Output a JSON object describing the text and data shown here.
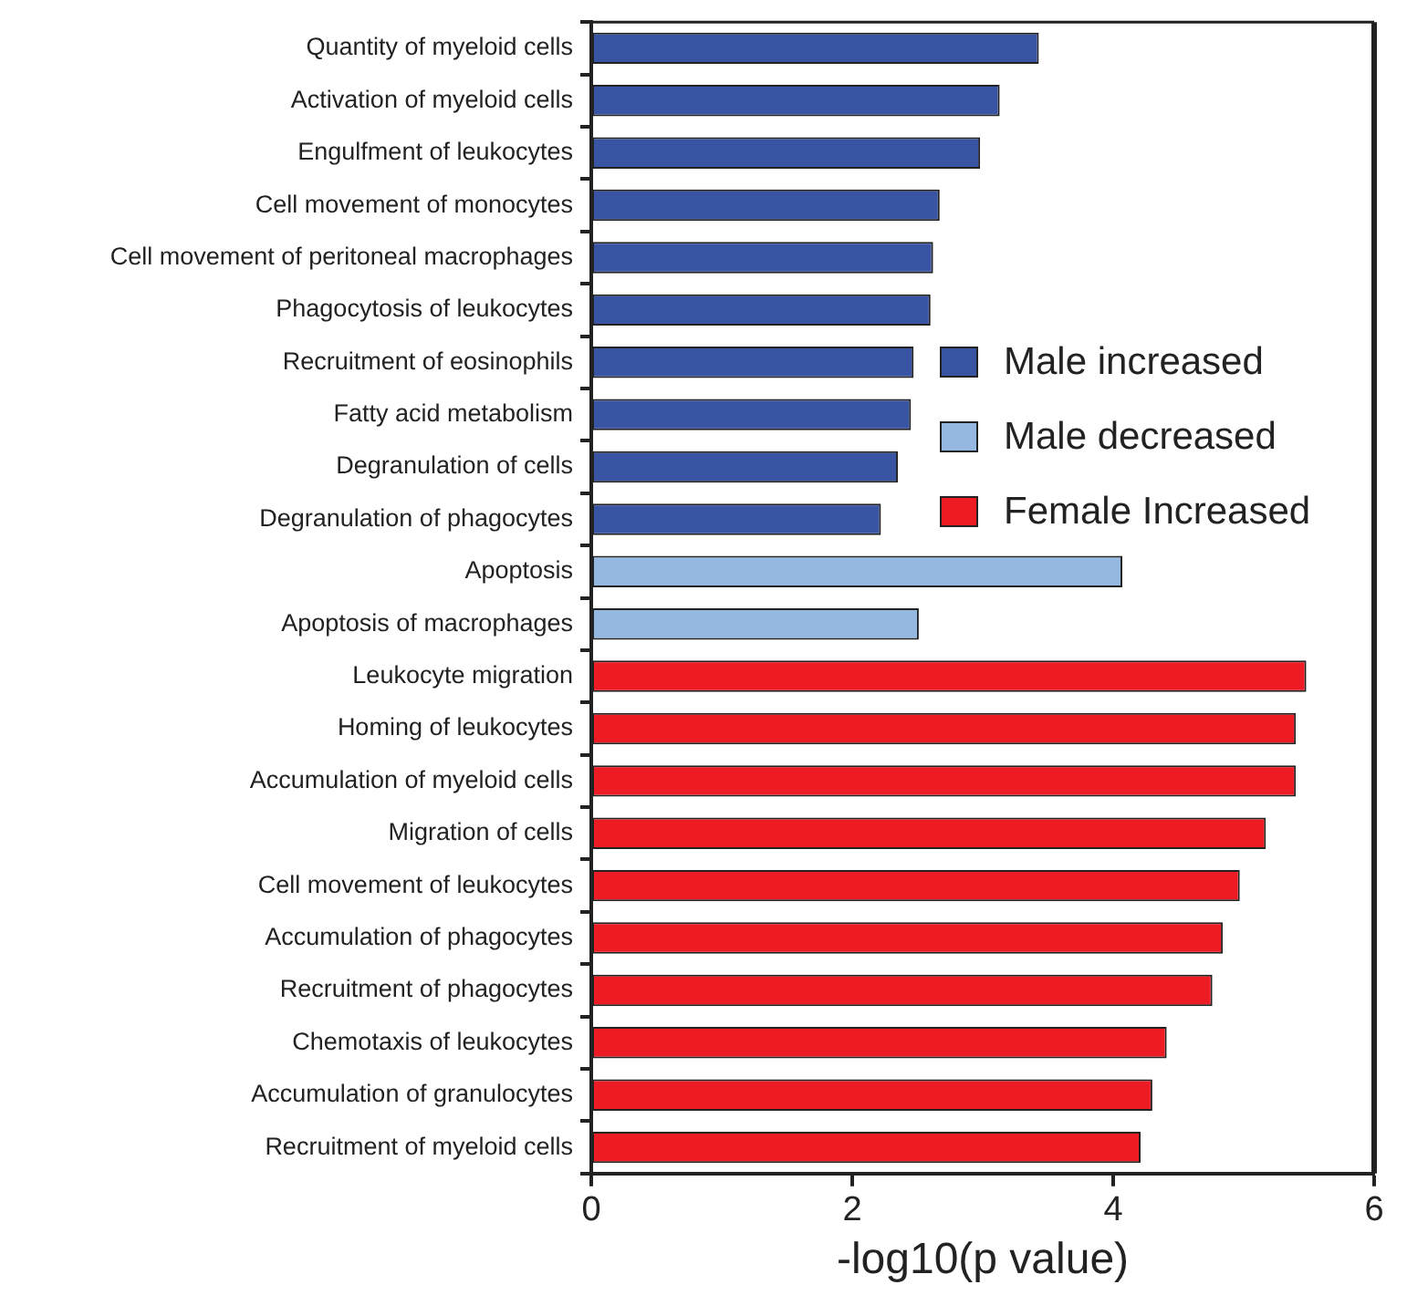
{
  "chart_data": {
    "type": "bar",
    "orientation": "horizontal",
    "stacked": true,
    "xlabel": "-log10(p value)",
    "xlim": [
      0,
      6
    ],
    "xticks": [
      0,
      2,
      4,
      6
    ],
    "grid": false,
    "legend": "right",
    "categories": [
      "Quantity of myeloid cells",
      "Activation of myeloid cells",
      "Engulfment of leukocytes",
      "Cell movement of monocytes",
      "Cell movement of peritoneal macrophages",
      "Phagocytosis of leukocytes",
      "Recruitment of eosinophils",
      "Fatty acid metabolism",
      "Degranulation of cells",
      "Degranulation of phagocytes",
      "Apoptosis",
      "Apoptosis of macrophages",
      "Leukocyte migration",
      "Homing of leukocytes",
      "Accumulation of myeloid cells",
      "Migration of cells",
      "Cell movement of leukocytes",
      "Accumulation of phagocytes",
      "Recruitment of phagocytes",
      "Chemotaxis of leukocytes",
      "Accumulation of granulocytes",
      "Recruitment of myeloid cells"
    ],
    "series": [
      {
        "name": "Male increased",
        "color": "#3a54a4",
        "values": [
          3.43,
          3.13,
          2.98,
          2.67,
          2.62,
          2.6,
          2.47,
          2.45,
          2.35,
          2.22,
          null,
          null,
          null,
          null,
          null,
          null,
          null,
          null,
          null,
          null,
          null,
          null
        ]
      },
      {
        "name": "Male decreased",
        "color": "#94b8e0",
        "values": [
          null,
          null,
          null,
          null,
          null,
          null,
          null,
          null,
          null,
          null,
          4.07,
          2.51,
          null,
          null,
          null,
          null,
          null,
          null,
          null,
          null,
          null,
          null
        ]
      },
      {
        "name": "Female Increased",
        "color": "#ed1c24",
        "values": [
          null,
          null,
          null,
          null,
          null,
          null,
          null,
          null,
          null,
          null,
          null,
          null,
          5.48,
          5.4,
          5.4,
          5.17,
          4.97,
          4.84,
          4.76,
          4.41,
          4.3,
          4.21
        ]
      }
    ]
  }
}
